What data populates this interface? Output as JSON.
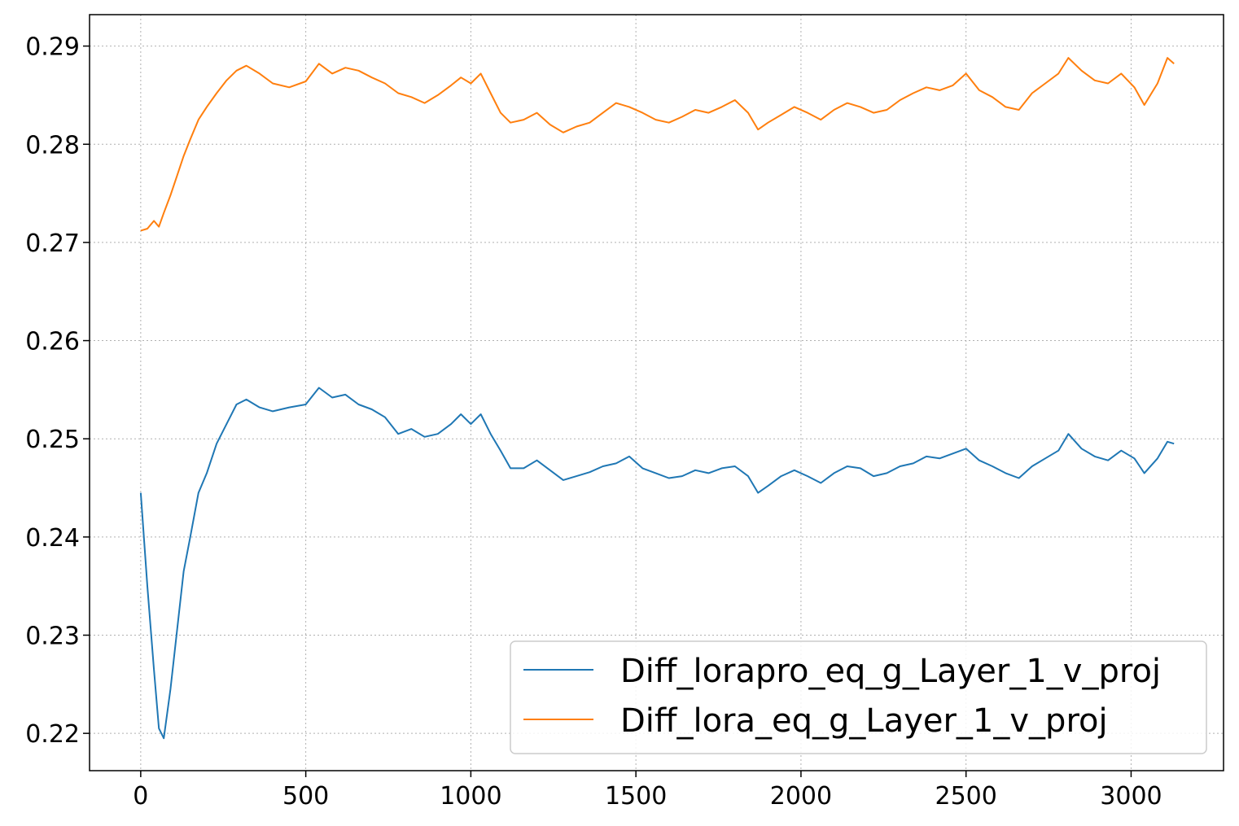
{
  "chart_data": {
    "type": "line",
    "title": "",
    "xlabel": "",
    "ylabel": "",
    "xlim": [
      -155,
      3280
    ],
    "ylim": [
      0.2162,
      0.2932
    ],
    "xticks": [
      0,
      500,
      1000,
      1500,
      2000,
      2500,
      3000
    ],
    "yticks": [
      0.22,
      0.23,
      0.24,
      0.25,
      0.26,
      0.27,
      0.28,
      0.29
    ],
    "xtick_labels": [
      "0",
      "500",
      "1000",
      "1500",
      "2000",
      "2500",
      "3000"
    ],
    "ytick_labels": [
      "0.22",
      "0.23",
      "0.24",
      "0.25",
      "0.26",
      "0.27",
      "0.28",
      "0.29"
    ],
    "grid": true,
    "legend_position": "lower-right",
    "series": [
      {
        "name": "Diff_lorapro_eq_g_Layer_1_v_proj",
        "color": "#1f77b4",
        "x": [
          0,
          20,
          40,
          55,
          70,
          90,
          110,
          130,
          150,
          175,
          200,
          230,
          260,
          290,
          320,
          360,
          400,
          450,
          500,
          540,
          580,
          620,
          660,
          700,
          740,
          780,
          820,
          860,
          900,
          940,
          970,
          1000,
          1030,
          1060,
          1090,
          1120,
          1160,
          1200,
          1240,
          1280,
          1320,
          1360,
          1400,
          1440,
          1480,
          1520,
          1560,
          1600,
          1640,
          1680,
          1720,
          1760,
          1800,
          1840,
          1870,
          1900,
          1940,
          1980,
          2020,
          2060,
          2100,
          2140,
          2180,
          2220,
          2260,
          2300,
          2340,
          2380,
          2420,
          2460,
          2500,
          2540,
          2580,
          2620,
          2660,
          2700,
          2740,
          2780,
          2810,
          2850,
          2890,
          2930,
          2970,
          3010,
          3040,
          3080,
          3110,
          3130
        ],
        "y": [
          0.2445,
          0.235,
          0.2265,
          0.2205,
          0.2195,
          0.2245,
          0.2305,
          0.2365,
          0.24,
          0.2445,
          0.2465,
          0.2495,
          0.2515,
          0.2535,
          0.254,
          0.2532,
          0.2528,
          0.2532,
          0.2535,
          0.2552,
          0.2542,
          0.2545,
          0.2535,
          0.253,
          0.2522,
          0.2505,
          0.251,
          0.2502,
          0.2505,
          0.2515,
          0.2525,
          0.2515,
          0.2525,
          0.2505,
          0.2488,
          0.247,
          0.247,
          0.2478,
          0.2468,
          0.2458,
          0.2462,
          0.2466,
          0.2472,
          0.2475,
          0.2482,
          0.247,
          0.2465,
          0.246,
          0.2462,
          0.2468,
          0.2465,
          0.247,
          0.2472,
          0.2462,
          0.2445,
          0.2452,
          0.2462,
          0.2468,
          0.2462,
          0.2455,
          0.2465,
          0.2472,
          0.247,
          0.2462,
          0.2465,
          0.2472,
          0.2475,
          0.2482,
          0.248,
          0.2485,
          0.249,
          0.2478,
          0.2472,
          0.2465,
          0.246,
          0.2472,
          0.248,
          0.2488,
          0.2505,
          0.249,
          0.2482,
          0.2478,
          0.2488,
          0.248,
          0.2465,
          0.248,
          0.2497,
          0.2495
        ]
      },
      {
        "name": "Diff_lora_eq_g_Layer_1_v_proj",
        "color": "#ff7f0e",
        "x": [
          0,
          20,
          40,
          55,
          70,
          90,
          110,
          130,
          150,
          175,
          200,
          230,
          260,
          290,
          320,
          360,
          400,
          450,
          500,
          540,
          580,
          620,
          660,
          700,
          740,
          780,
          820,
          860,
          900,
          940,
          970,
          1000,
          1030,
          1060,
          1090,
          1120,
          1160,
          1200,
          1240,
          1280,
          1320,
          1360,
          1400,
          1440,
          1480,
          1520,
          1560,
          1600,
          1640,
          1680,
          1720,
          1760,
          1800,
          1840,
          1870,
          1900,
          1940,
          1980,
          2020,
          2060,
          2100,
          2140,
          2180,
          2220,
          2260,
          2300,
          2340,
          2380,
          2420,
          2460,
          2500,
          2540,
          2580,
          2620,
          2660,
          2700,
          2740,
          2780,
          2810,
          2850,
          2890,
          2930,
          2970,
          3010,
          3040,
          3080,
          3110,
          3130
        ],
        "y": [
          0.2712,
          0.2714,
          0.2722,
          0.2716,
          0.273,
          0.2748,
          0.2768,
          0.2788,
          0.2805,
          0.2825,
          0.2838,
          0.2852,
          0.2865,
          0.2875,
          0.288,
          0.2872,
          0.2862,
          0.2858,
          0.2864,
          0.2882,
          0.2872,
          0.2878,
          0.2875,
          0.2868,
          0.2862,
          0.2852,
          0.2848,
          0.2842,
          0.285,
          0.286,
          0.2868,
          0.2862,
          0.2872,
          0.2852,
          0.2832,
          0.2822,
          0.2825,
          0.2832,
          0.282,
          0.2812,
          0.2818,
          0.2822,
          0.2832,
          0.2842,
          0.2838,
          0.2832,
          0.2825,
          0.2822,
          0.2828,
          0.2835,
          0.2832,
          0.2838,
          0.2845,
          0.2832,
          0.2815,
          0.2822,
          0.283,
          0.2838,
          0.2832,
          0.2825,
          0.2835,
          0.2842,
          0.2838,
          0.2832,
          0.2835,
          0.2845,
          0.2852,
          0.2858,
          0.2855,
          0.286,
          0.2872,
          0.2855,
          0.2848,
          0.2838,
          0.2835,
          0.2852,
          0.2862,
          0.2872,
          0.2888,
          0.2875,
          0.2865,
          0.2862,
          0.2872,
          0.2858,
          0.284,
          0.2862,
          0.2888,
          0.2882
        ]
      }
    ]
  }
}
